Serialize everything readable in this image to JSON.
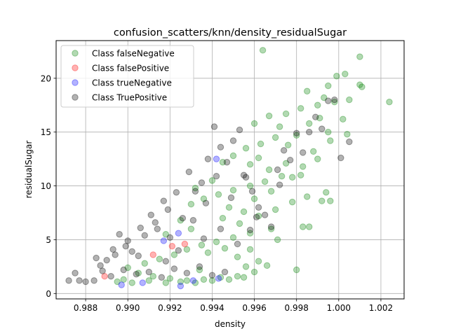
{
  "chart_data": {
    "type": "scatter",
    "title": "confusion_scatters/knn/density_residualSugar",
    "xlabel": "density",
    "ylabel": "residualSugar",
    "xlim": [
      0.9866,
      1.0031
    ],
    "ylim": [
      -0.5,
      23.5
    ],
    "xticks": [
      "0.988",
      "0.990",
      "0.992",
      "0.994",
      "0.996",
      "0.998",
      "1.000",
      "1.002"
    ],
    "xtick_values": [
      0.988,
      0.99,
      0.992,
      0.994,
      0.996,
      0.998,
      1.0,
      1.002
    ],
    "yticks": [
      "0",
      "5",
      "10",
      "15",
      "20"
    ],
    "ytick_values": [
      0,
      5,
      10,
      15,
      20
    ],
    "grid": true,
    "legend_position": "top-left",
    "marker_alpha": 0.3,
    "series": [
      {
        "name": "Class falseNegative",
        "color": "#008000",
        "points": [
          [
            0.9964,
            22.6
          ],
          [
            1.001,
            22.0
          ],
          [
            1.0024,
            17.8
          ],
          [
            0.9999,
            20.2
          ],
          [
            1.0003,
            20.4
          ],
          [
            0.9995,
            19.3
          ],
          [
            1.001,
            19.4
          ],
          [
            1.0011,
            19.2
          ],
          [
            0.9993,
            18.2
          ],
          [
            0.9985,
            18.8
          ],
          [
            0.9998,
            17.8
          ],
          [
            1.0005,
            18.0
          ],
          [
            0.999,
            17.5
          ],
          [
            0.9982,
            17.2
          ],
          [
            0.9975,
            16.7
          ],
          [
            0.9967,
            16.5
          ],
          [
            0.996,
            15.8
          ],
          [
            0.9972,
            15.5
          ],
          [
            0.9986,
            15.8
          ],
          [
            0.9991,
            16.3
          ],
          [
            1.0002,
            16.2
          ],
          [
            0.9995,
            15.0
          ],
          [
            0.998,
            14.7
          ],
          [
            0.997,
            14.5
          ],
          [
            0.9963,
            13.9
          ],
          [
            0.9956,
            13.5
          ],
          [
            0.995,
            12.8
          ],
          [
            0.9945,
            12.2
          ],
          [
            0.9958,
            12.0
          ],
          [
            0.9967,
            11.5
          ],
          [
            0.9975,
            12.1
          ],
          [
            0.9983,
            11.8
          ],
          [
            0.999,
            12.5
          ],
          [
            0.9978,
            10.8
          ],
          [
            0.9965,
            10.4
          ],
          [
            0.9958,
            10.0
          ],
          [
            0.995,
            9.6
          ],
          [
            0.9943,
            9.2
          ],
          [
            0.9936,
            8.8
          ],
          [
            0.993,
            8.3
          ],
          [
            0.9948,
            8.0
          ],
          [
            0.9955,
            7.6
          ],
          [
            0.9962,
            7.2
          ],
          [
            0.997,
            7.8
          ],
          [
            0.9978,
            8.5
          ],
          [
            0.9985,
            9.0
          ],
          [
            0.9992,
            8.6
          ],
          [
            0.9983,
            6.2
          ],
          [
            0.9968,
            6.0
          ],
          [
            0.9958,
            5.6
          ],
          [
            0.995,
            5.2
          ],
          [
            0.9942,
            4.8
          ],
          [
            0.9935,
            4.5
          ],
          [
            0.9928,
            4.1
          ],
          [
            0.9922,
            3.6
          ],
          [
            0.9915,
            3.2
          ],
          [
            0.9908,
            2.8
          ],
          [
            0.99,
            2.4
          ],
          [
            0.9905,
            1.9
          ],
          [
            0.9912,
            1.6
          ],
          [
            0.992,
            1.4
          ],
          [
            0.9928,
            1.2
          ],
          [
            0.9936,
            1.3
          ],
          [
            0.9944,
            1.5
          ],
          [
            0.9952,
            1.6
          ],
          [
            0.996,
            2.0
          ],
          [
            0.9966,
            2.6
          ],
          [
            0.998,
            2.2
          ],
          [
            0.9895,
            1.1
          ],
          [
            0.9898,
            1.3
          ],
          [
            0.9902,
            1.0
          ],
          [
            0.991,
            1.2
          ],
          [
            0.9918,
            1.0
          ],
          [
            0.9925,
            1.1
          ],
          [
            0.9932,
            1.0
          ],
          [
            0.994,
            1.2
          ],
          [
            0.9948,
            1.3
          ],
          [
            0.9955,
            1.5
          ],
          [
            0.9962,
            3.0
          ],
          [
            0.9938,
            3.8
          ],
          [
            0.9946,
            4.2
          ],
          [
            0.9953,
            6.5
          ],
          [
            0.996,
            8.8
          ],
          [
            0.9968,
            9.5
          ],
          [
            0.9973,
            10.9
          ],
          [
            0.9982,
            11.0
          ],
          [
            0.9988,
            13.2
          ],
          [
            0.9996,
            14.2
          ],
          [
            1.0004,
            14.8
          ],
          [
            0.9976,
            13.8
          ],
          [
            0.9962,
            12.6
          ],
          [
            0.994,
            10.5
          ],
          [
            0.9932,
            9.8
          ],
          [
            0.9925,
            6.8
          ],
          [
            0.9918,
            5.5
          ],
          [
            0.993,
            6.0
          ],
          [
            0.9945,
            7.0
          ],
          [
            0.9952,
            3.4
          ],
          [
            0.9958,
            4.1
          ],
          [
            0.9994,
            9.4
          ],
          [
            0.9986,
            6.2
          ],
          [
            0.9996,
            8.6
          ],
          [
            0.9971,
            5.0
          ],
          [
            0.9956,
            2.5
          ],
          [
            0.9934,
            2.2
          ]
        ]
      },
      {
        "name": "Class falsePositive",
        "color": "#ff0000",
        "points": [
          [
            0.9889,
            1.6
          ],
          [
            0.9921,
            4.4
          ],
          [
            0.9927,
            4.6
          ],
          [
            0.9912,
            3.6
          ]
        ]
      },
      {
        "name": "Class trueNegative",
        "color": "#0000ff",
        "points": [
          [
            0.9942,
            12.5
          ],
          [
            0.9897,
            0.8
          ],
          [
            0.9925,
            0.7
          ],
          [
            0.9917,
            4.9
          ],
          [
            0.9924,
            5.6
          ],
          [
            0.9943,
            1.4
          ],
          [
            0.9907,
            1.0
          ],
          [
            0.9931,
            1.2
          ]
        ]
      },
      {
        "name": "Class TruePositive",
        "color": "#000000",
        "points": [
          [
            0.9872,
            1.2
          ],
          [
            0.9875,
            1.9
          ],
          [
            0.9877,
            1.2
          ],
          [
            0.988,
            1.1
          ],
          [
            0.9884,
            1.2
          ],
          [
            0.9887,
            2.6
          ],
          [
            0.989,
            3.1
          ],
          [
            0.9893,
            4.1
          ],
          [
            0.9896,
            5.5
          ],
          [
            0.9899,
            4.4
          ],
          [
            0.9902,
            3.9
          ],
          [
            0.9905,
            3.5
          ],
          [
            0.9908,
            5.4
          ],
          [
            0.9911,
            7.3
          ],
          [
            0.9914,
            6.0
          ],
          [
            0.9917,
            8.6
          ],
          [
            0.992,
            5.2
          ],
          [
            0.9923,
            9.4
          ],
          [
            0.9926,
            7.0
          ],
          [
            0.9929,
            11.3
          ],
          [
            0.9932,
            9.5
          ],
          [
            0.9935,
            10.3
          ],
          [
            0.9938,
            12.5
          ],
          [
            0.9941,
            15.5
          ],
          [
            0.9944,
            13.6
          ],
          [
            0.9947,
            12.2
          ],
          [
            0.995,
            14.2
          ],
          [
            0.9953,
            15.2
          ],
          [
            0.9956,
            10.8
          ],
          [
            0.9959,
            9.5
          ],
          [
            0.9962,
            8.0
          ],
          [
            0.9965,
            7.3
          ],
          [
            0.9968,
            6.2
          ],
          [
            0.9971,
            11.5
          ],
          [
            0.9974,
            13.3
          ],
          [
            0.9977,
            12.4
          ],
          [
            0.998,
            14.9
          ],
          [
            0.9983,
            13.1
          ],
          [
            0.9986,
            15.0
          ],
          [
            0.9989,
            16.4
          ],
          [
            0.9992,
            15.3
          ],
          [
            0.9995,
            17.9
          ],
          [
            0.9998,
            18.0
          ],
          [
            1.0001,
            12.6
          ],
          [
            1.0005,
            14.1
          ],
          [
            0.9892,
            1.6
          ],
          [
            0.9898,
            2.2
          ],
          [
            0.9904,
            1.8
          ],
          [
            0.991,
            2.0
          ],
          [
            0.9916,
            1.5
          ],
          [
            0.9922,
            2.3
          ],
          [
            0.9928,
            1.9
          ],
          [
            0.9934,
            2.5
          ],
          [
            0.994,
            1.7
          ],
          [
            0.9946,
            2.0
          ],
          [
            0.9952,
            4.6
          ],
          [
            0.9958,
            5.9
          ],
          [
            0.9931,
            6.8
          ],
          [
            0.9919,
            7.8
          ],
          [
            0.9913,
            6.6
          ],
          [
            0.9906,
            6.1
          ],
          [
            0.99,
            4.9
          ],
          [
            0.9894,
            3.6
          ],
          [
            0.9888,
            2.1
          ],
          [
            0.9885,
            3.3
          ],
          [
            0.9918,
            3.0
          ],
          [
            0.9924,
            4.0
          ],
          [
            0.9936,
            5.1
          ],
          [
            0.9944,
            6.0
          ],
          [
            0.9949,
            8.9
          ],
          [
            0.9955,
            11.0
          ],
          [
            0.9942,
            10.9
          ],
          [
            0.9937,
            8.4
          ],
          [
            0.9961,
            7.1
          ],
          [
            0.9972,
            10.1
          ]
        ]
      }
    ]
  }
}
